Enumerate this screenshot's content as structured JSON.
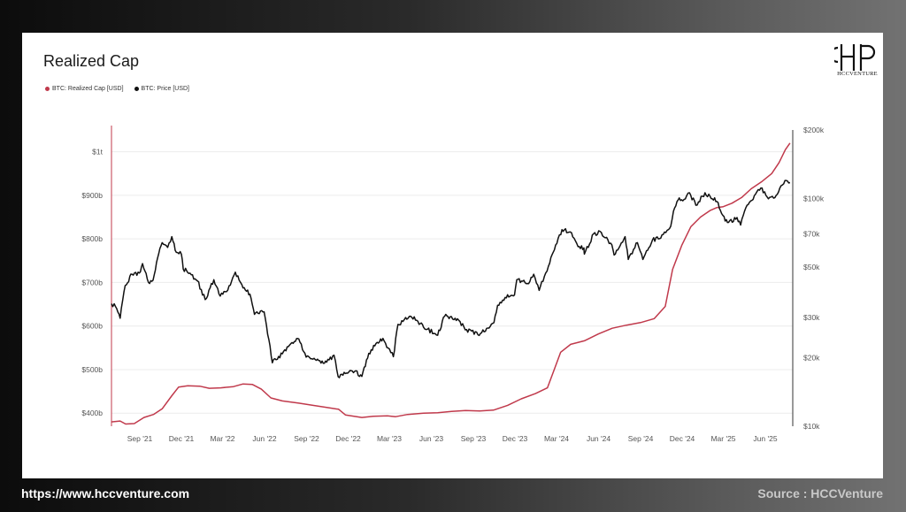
{
  "title": "Realized Cap",
  "logo_text": "HCCVENTURE",
  "footer": {
    "url": "https://www.hccventure.com",
    "source": "Source : HCCVenture"
  },
  "colors": {
    "realized_cap": "#c0394b",
    "price": "#111111",
    "grid": "#ececec",
    "axis_text": "#555555"
  },
  "chart_data": {
    "type": "line",
    "title": "Realized Cap",
    "legend_placement": "top-left",
    "grid": true,
    "x_ticks": [
      "Sep '21",
      "Dec '21",
      "Mar '22",
      "Jun '22",
      "Sep '22",
      "Dec '22",
      "Mar '23",
      "Jun '23",
      "Sep '23",
      "Dec '23",
      "Mar '24",
      "Jun '24",
      "Sep '24",
      "Dec '24",
      "Mar '25",
      "Jun '25"
    ],
    "x_range": [
      "2021-07-01",
      "2025-07-31"
    ],
    "y_left": {
      "ticks": [
        400,
        500,
        600,
        700,
        800,
        900,
        1000
      ],
      "tick_labels": [
        "$400b",
        "$500b",
        "$600b",
        "$700b",
        "$800b",
        "$900b",
        "$1t"
      ],
      "unit": "USD billions",
      "range": [
        370,
        1050
      ]
    },
    "y_right": {
      "scale": "log",
      "ticks": [
        10000,
        20000,
        30000,
        50000,
        70000,
        100000,
        200000
      ],
      "tick_labels": [
        "$10k",
        "$20k",
        "$30k",
        "$50k",
        "$70k",
        "$100k",
        "$200k"
      ],
      "range": [
        10000,
        200000
      ]
    },
    "series": [
      {
        "name": "BTC: Realized Cap [USD]",
        "axis": "left",
        "points": [
          [
            "2021-07-01",
            380
          ],
          [
            "2021-07-20",
            382
          ],
          [
            "2021-08-01",
            375
          ],
          [
            "2021-08-20",
            376
          ],
          [
            "2021-09-10",
            390
          ],
          [
            "2021-10-01",
            397
          ],
          [
            "2021-10-20",
            410
          ],
          [
            "2021-11-10",
            440
          ],
          [
            "2021-11-25",
            460
          ],
          [
            "2021-12-15",
            463
          ],
          [
            "2022-01-10",
            462
          ],
          [
            "2022-01-31",
            457
          ],
          [
            "2022-02-25",
            458
          ],
          [
            "2022-03-25",
            461
          ],
          [
            "2022-04-15",
            467
          ],
          [
            "2022-05-05",
            466
          ],
          [
            "2022-05-25",
            455
          ],
          [
            "2022-06-15",
            435
          ],
          [
            "2022-07-10",
            428
          ],
          [
            "2022-08-15",
            423
          ],
          [
            "2022-09-15",
            418
          ],
          [
            "2022-10-15",
            413
          ],
          [
            "2022-11-10",
            409
          ],
          [
            "2022-11-25",
            396
          ],
          [
            "2022-12-31",
            390
          ],
          [
            "2023-01-25",
            393
          ],
          [
            "2023-02-25",
            394
          ],
          [
            "2023-03-15",
            392
          ],
          [
            "2023-04-10",
            397
          ],
          [
            "2023-05-15",
            400
          ],
          [
            "2023-06-15",
            401
          ],
          [
            "2023-07-15",
            404
          ],
          [
            "2023-08-15",
            406
          ],
          [
            "2023-09-15",
            405
          ],
          [
            "2023-10-15",
            407
          ],
          [
            "2023-11-15",
            418
          ],
          [
            "2023-12-15",
            433
          ],
          [
            "2024-01-15",
            445
          ],
          [
            "2024-02-10",
            458
          ],
          [
            "2024-02-25",
            500
          ],
          [
            "2024-03-10",
            540
          ],
          [
            "2024-04-01",
            558
          ],
          [
            "2024-05-01",
            566
          ],
          [
            "2024-06-01",
            582
          ],
          [
            "2024-07-01",
            595
          ],
          [
            "2024-08-01",
            602
          ],
          [
            "2024-09-01",
            608
          ],
          [
            "2024-10-01",
            617
          ],
          [
            "2024-10-25",
            645
          ],
          [
            "2024-11-10",
            730
          ],
          [
            "2024-11-30",
            785
          ],
          [
            "2024-12-20",
            828
          ],
          [
            "2025-01-10",
            850
          ],
          [
            "2025-01-31",
            865
          ],
          [
            "2025-02-15",
            872
          ],
          [
            "2025-03-01",
            874
          ],
          [
            "2025-03-20",
            882
          ],
          [
            "2025-04-10",
            895
          ],
          [
            "2025-05-01",
            915
          ],
          [
            "2025-05-25",
            932
          ],
          [
            "2025-06-15",
            950
          ],
          [
            "2025-07-01",
            975
          ],
          [
            "2025-07-15",
            1005
          ],
          [
            "2025-07-25",
            1020
          ]
        ]
      },
      {
        "name": "BTC: Price [USD]",
        "axis": "right",
        "scale": "log",
        "points": [
          [
            "2021-07-01",
            34500
          ],
          [
            "2021-07-10",
            33500
          ],
          [
            "2021-07-20",
            29800
          ],
          [
            "2021-07-31",
            41500
          ],
          [
            "2021-08-15",
            46500
          ],
          [
            "2021-08-31",
            47100
          ],
          [
            "2021-09-07",
            51800
          ],
          [
            "2021-09-20",
            42800
          ],
          [
            "2021-09-30",
            43800
          ],
          [
            "2021-10-10",
            55000
          ],
          [
            "2021-10-20",
            64000
          ],
          [
            "2021-11-01",
            61000
          ],
          [
            "2021-11-10",
            68000
          ],
          [
            "2021-11-20",
            58000
          ],
          [
            "2021-12-01",
            57000
          ],
          [
            "2021-12-05",
            49000
          ],
          [
            "2021-12-20",
            47000
          ],
          [
            "2022-01-05",
            43500
          ],
          [
            "2022-01-22",
            36000
          ],
          [
            "2022-02-10",
            44000
          ],
          [
            "2022-02-24",
            37300
          ],
          [
            "2022-03-10",
            39000
          ],
          [
            "2022-03-29",
            47500
          ],
          [
            "2022-04-15",
            40500
          ],
          [
            "2022-04-30",
            38000
          ],
          [
            "2022-05-10",
            31000
          ],
          [
            "2022-05-31",
            31800
          ],
          [
            "2022-06-13",
            22500
          ],
          [
            "2022-06-18",
            19000
          ],
          [
            "2022-07-10",
            20800
          ],
          [
            "2022-07-31",
            23300
          ],
          [
            "2022-08-15",
            24200
          ],
          [
            "2022-08-31",
            20100
          ],
          [
            "2022-09-15",
            19700
          ],
          [
            "2022-09-30",
            19400
          ],
          [
            "2022-10-15",
            19100
          ],
          [
            "2022-10-31",
            20500
          ],
          [
            "2022-11-09",
            16500
          ],
          [
            "2022-11-30",
            17100
          ],
          [
            "2022-12-15",
            17400
          ],
          [
            "2022-12-31",
            16550
          ],
          [
            "2023-01-15",
            20900
          ],
          [
            "2023-01-31",
            23100
          ],
          [
            "2023-02-15",
            24300
          ],
          [
            "2023-03-10",
            20200
          ],
          [
            "2023-03-20",
            28000
          ],
          [
            "2023-04-14",
            30400
          ],
          [
            "2023-04-30",
            29200
          ],
          [
            "2023-05-15",
            27200
          ],
          [
            "2023-06-15",
            25100
          ],
          [
            "2023-06-30",
            30400
          ],
          [
            "2023-07-15",
            30300
          ],
          [
            "2023-07-31",
            29200
          ],
          [
            "2023-08-17",
            26600
          ],
          [
            "2023-09-11",
            25200
          ],
          [
            "2023-09-30",
            26900
          ],
          [
            "2023-10-16",
            28500
          ],
          [
            "2023-10-24",
            34000
          ],
          [
            "2023-11-15",
            37800
          ],
          [
            "2023-11-30",
            37700
          ],
          [
            "2023-12-05",
            44000
          ],
          [
            "2023-12-31",
            42300
          ],
          [
            "2024-01-11",
            46500
          ],
          [
            "2024-01-23",
            39500
          ],
          [
            "2024-02-15",
            52000
          ],
          [
            "2024-02-28",
            62500
          ],
          [
            "2024-03-13",
            73000
          ],
          [
            "2024-03-31",
            71300
          ],
          [
            "2024-04-17",
            61500
          ],
          [
            "2024-04-30",
            60700
          ],
          [
            "2024-05-01",
            57000
          ],
          [
            "2024-05-21",
            70000
          ],
          [
            "2024-06-07",
            71000
          ],
          [
            "2024-06-30",
            62700
          ],
          [
            "2024-07-05",
            56500
          ],
          [
            "2024-07-29",
            68000
          ],
          [
            "2024-08-05",
            54000
          ],
          [
            "2024-08-25",
            64000
          ],
          [
            "2024-09-06",
            54000
          ],
          [
            "2024-09-27",
            65800
          ],
          [
            "2024-10-15",
            67000
          ],
          [
            "2024-10-29",
            72500
          ],
          [
            "2024-11-06",
            75500
          ],
          [
            "2024-11-12",
            88000
          ],
          [
            "2024-11-22",
            98500
          ],
          [
            "2024-12-05",
            99000
          ],
          [
            "2024-12-17",
            106000
          ],
          [
            "2024-12-31",
            93400
          ],
          [
            "2025-01-20",
            106000
          ],
          [
            "2025-01-31",
            102400
          ],
          [
            "2025-02-15",
            97000
          ],
          [
            "2025-02-28",
            84300
          ],
          [
            "2025-03-10",
            78500
          ],
          [
            "2025-03-31",
            82500
          ],
          [
            "2025-04-08",
            76500
          ],
          [
            "2025-04-22",
            93500
          ],
          [
            "2025-05-08",
            103000
          ],
          [
            "2025-05-22",
            111000
          ],
          [
            "2025-06-05",
            101500
          ],
          [
            "2025-06-22",
            101000
          ],
          [
            "2025-06-30",
            107000
          ],
          [
            "2025-07-14",
            120000
          ],
          [
            "2025-07-25",
            117500
          ]
        ]
      }
    ]
  }
}
